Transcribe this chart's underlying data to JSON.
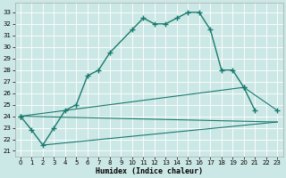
{
  "xlabel": "Humidex (Indice chaleur)",
  "bg_color": "#cce8e6",
  "line_color": "#1a7a6e",
  "grid_color": "#b8d8d5",
  "xlim": [
    -0.5,
    23.5
  ],
  "ylim": [
    20.5,
    33.8
  ],
  "yticks": [
    21,
    22,
    23,
    24,
    25,
    26,
    27,
    28,
    29,
    30,
    31,
    32,
    33
  ],
  "xticks": [
    0,
    1,
    2,
    3,
    4,
    5,
    6,
    7,
    8,
    9,
    10,
    11,
    12,
    13,
    14,
    15,
    16,
    17,
    18,
    19,
    20,
    21,
    22,
    23
  ],
  "curve_x": [
    0,
    1,
    2,
    3,
    4,
    5,
    6,
    7,
    8,
    10,
    11,
    12,
    13,
    14,
    15,
    16,
    17,
    18,
    19,
    20,
    21
  ],
  "curve_y": [
    24.0,
    22.8,
    21.5,
    23.0,
    24.5,
    25.0,
    27.5,
    28.0,
    29.5,
    31.5,
    32.5,
    32.0,
    32.0,
    32.5,
    33.0,
    33.0,
    31.5,
    28.0,
    28.0,
    26.5,
    24.5
  ],
  "line1_x": [
    0,
    23
  ],
  "line1_y": [
    24.0,
    23.5
  ],
  "line2_x": [
    2,
    23
  ],
  "line2_y": [
    21.5,
    23.5
  ],
  "line3_x": [
    0,
    20,
    23
  ],
  "line3_y": [
    24.0,
    26.5,
    24.5
  ]
}
